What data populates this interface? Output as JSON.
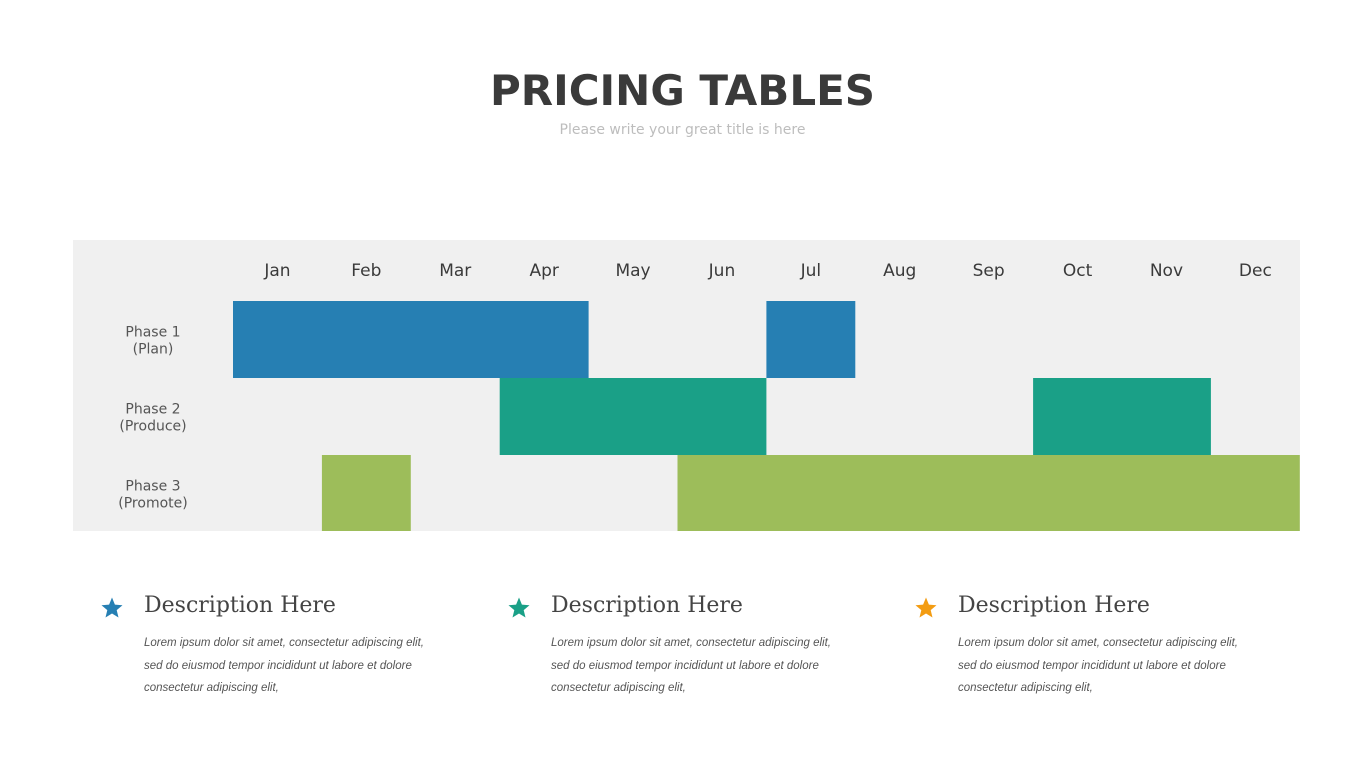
{
  "header": {
    "title": "PRICING TABLES",
    "subtitle": "Please write your great title is here"
  },
  "chart_data": {
    "type": "bar",
    "subtype": "gantt",
    "months": [
      "Jan",
      "Feb",
      "Mar",
      "Apr",
      "May",
      "Jun",
      "Jul",
      "Aug",
      "Sep",
      "Oct",
      "Nov",
      "Dec"
    ],
    "phases": [
      {
        "label_1": "Phase 1",
        "label_2": "(Plan)",
        "color": "#267fb3",
        "ranges": [
          {
            "start": "Jan",
            "end": "Apr"
          },
          {
            "start": "Jul",
            "end": "Jul"
          }
        ]
      },
      {
        "label_1": "Phase 2",
        "label_2": "(Produce)",
        "color": "#1aa087",
        "ranges": [
          {
            "start": "Apr",
            "end": "Jun"
          },
          {
            "start": "Oct",
            "end": "Nov"
          }
        ]
      },
      {
        "label_1": "Phase 3",
        "label_2": "(Promote)",
        "color": "#9dbd5a",
        "ranges": [
          {
            "start": "Feb",
            "end": "Feb"
          },
          {
            "start": "Jun",
            "end": "Dec"
          }
        ]
      }
    ],
    "background_color": "#f0f0f0"
  },
  "descriptions": [
    {
      "title": "Description Here",
      "star_color": "#267fb3",
      "icon": "star-icon",
      "lines": [
        "Lorem ipsum dolor sit amet, consectetur  adipiscing elit,",
        "sed do eiusmod tempor incididunt ut labore et dolore",
        "consectetur  adipiscing elit,"
      ]
    },
    {
      "title": "Description Here",
      "star_color": "#1aa087",
      "icon": "star-icon",
      "lines": [
        "Lorem ipsum dolor sit amet, consectetur  adipiscing elit,",
        "sed do eiusmod tempor incididunt ut labore et dolore",
        "consectetur  adipiscing elit,"
      ]
    },
    {
      "title": "Description Here",
      "star_color": "#f39c12",
      "icon": "star-icon",
      "lines": [
        "Lorem ipsum dolor sit amet, consectetur  adipiscing elit,",
        "sed do eiusmod tempor incididunt ut labore et dolore",
        "consectetur  adipiscing elit,"
      ]
    }
  ]
}
